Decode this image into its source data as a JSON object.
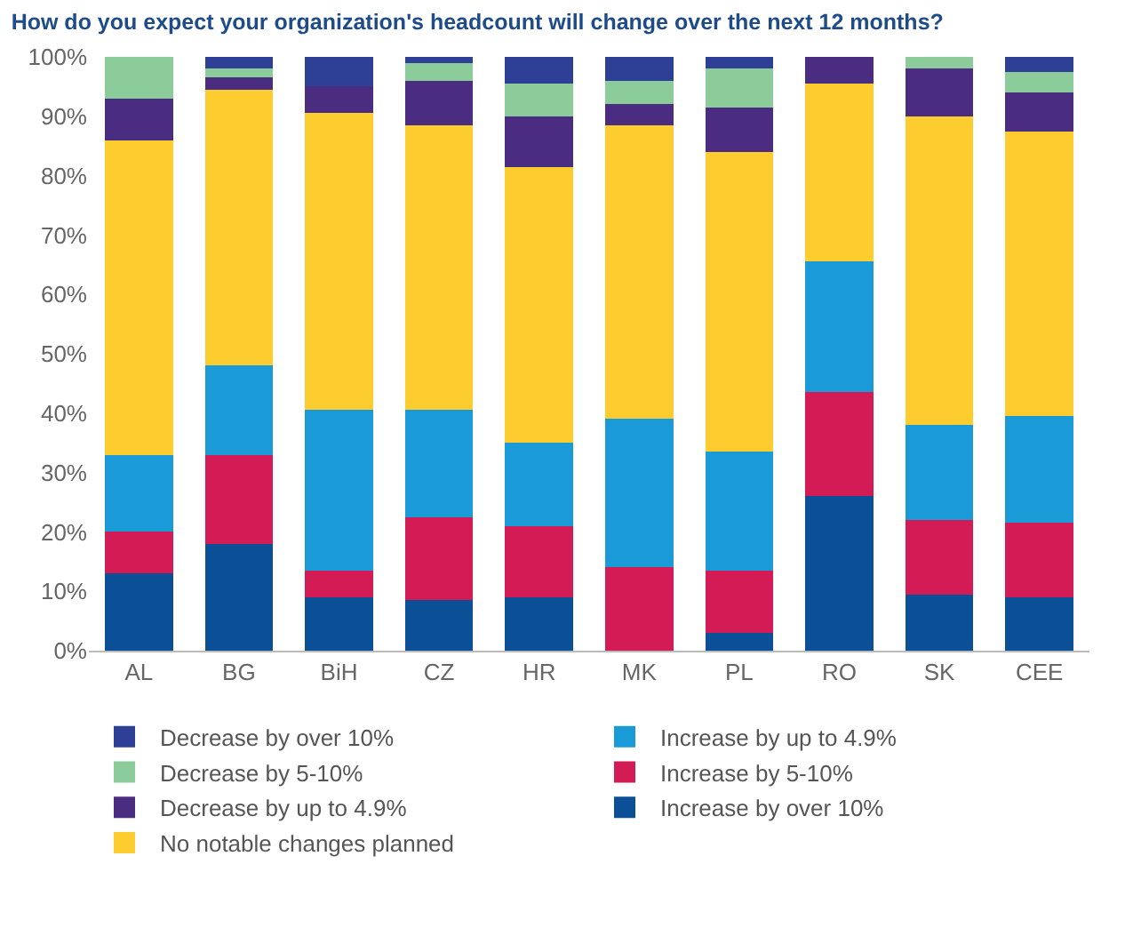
{
  "chart_data": {
    "type": "bar",
    "title": "How do you expect your organization's headcount will change over the next 12 months?",
    "stacked": true,
    "categories": [
      "AL",
      "BG",
      "BiH",
      "CZ",
      "HR",
      "MK",
      "PL",
      "RO",
      "SK",
      "CEE"
    ],
    "series": [
      {
        "name": "Increase by over 10%",
        "color": "#0b4f96",
        "values": [
          13,
          18,
          9,
          8.5,
          9,
          0,
          3,
          26,
          9.5,
          9
        ]
      },
      {
        "name": "Increase by 5-10%",
        "color": "#d31b56",
        "values": [
          7,
          15,
          4.5,
          14,
          12,
          14,
          10.5,
          17.5,
          12.5,
          12.5
        ]
      },
      {
        "name": "Increase by up to 4.9%",
        "color": "#1a9ad6",
        "values": [
          13,
          15,
          27,
          18,
          14,
          25,
          20,
          22,
          16,
          18
        ]
      },
      {
        "name": "No notable changes planned",
        "color": "#fdcd30",
        "values": [
          53,
          46.5,
          50,
          48,
          46.5,
          49.5,
          50.5,
          30,
          52,
          48
        ]
      },
      {
        "name": "Decrease by up to 4.9%",
        "color": "#4a2c80",
        "values": [
          7,
          2,
          4.5,
          7.5,
          8.5,
          3.5,
          7.5,
          4.5,
          8,
          6.5
        ]
      },
      {
        "name": "Decrease by 5-10%",
        "color": "#8ccb9a",
        "values": [
          7,
          1.5,
          0,
          3,
          5.5,
          4,
          6.5,
          0,
          2,
          3.5
        ]
      },
      {
        "name": "Decrease by over 10%",
        "color": "#2e3f96",
        "values": [
          0,
          2,
          5,
          1,
          4.5,
          4,
          2,
          0,
          0,
          2.5
        ]
      }
    ],
    "ylim": [
      0,
      100
    ],
    "yticks": [
      {
        "value": 0,
        "label": "0%"
      },
      {
        "value": 10,
        "label": "10%"
      },
      {
        "value": 20,
        "label": "20%"
      },
      {
        "value": 30,
        "label": "30%"
      },
      {
        "value": 40,
        "label": "40%"
      },
      {
        "value": 50,
        "label": "50%"
      },
      {
        "value": 60,
        "label": "60%"
      },
      {
        "value": 70,
        "label": "70%"
      },
      {
        "value": 80,
        "label": "80%"
      },
      {
        "value": 90,
        "label": "90%"
      },
      {
        "value": 100,
        "label": "100%"
      }
    ],
    "legend": "bottom"
  }
}
